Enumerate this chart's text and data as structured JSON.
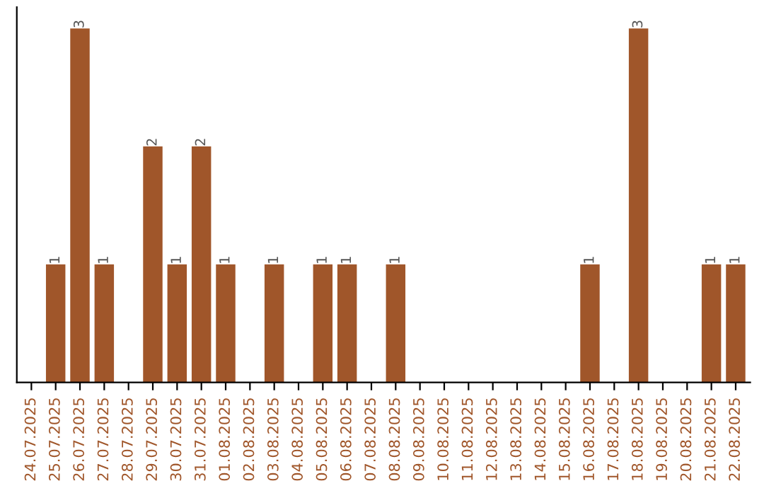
{
  "chart_data": {
    "type": "bar",
    "categories": [
      "24.07.2025",
      "25.07.2025",
      "26.07.2025",
      "27.07.2025",
      "28.07.2025",
      "29.07.2025",
      "30.07.2025",
      "31.07.2025",
      "01.08.2025",
      "02.08.2025",
      "03.08.2025",
      "04.08.2025",
      "05.08.2025",
      "06.08.2025",
      "07.08.2025",
      "08.08.2025",
      "09.08.2025",
      "10.08.2025",
      "11.08.2025",
      "12.08.2025",
      "13.08.2025",
      "14.08.2025",
      "15.08.2025",
      "16.08.2025",
      "17.08.2025",
      "18.08.2025",
      "19.08.2025",
      "20.08.2025",
      "21.08.2025",
      "22.08.2025"
    ],
    "values": [
      0,
      1,
      3,
      1,
      0,
      2,
      1,
      2,
      1,
      0,
      1,
      0,
      1,
      1,
      0,
      1,
      0,
      0,
      0,
      0,
      0,
      0,
      0,
      1,
      0,
      3,
      0,
      0,
      1,
      1
    ],
    "value_labels": [
      null,
      "1",
      "3",
      "1",
      null,
      "2",
      "1",
      "2",
      "1",
      null,
      "1",
      null,
      "1",
      "1",
      null,
      "1",
      null,
      null,
      null,
      null,
      null,
      null,
      null,
      "1",
      null,
      "3",
      null,
      null,
      "1",
      "1"
    ],
    "color": "#a0562a",
    "tick_labels": "x",
    "grid": false,
    "legend": false
  }
}
